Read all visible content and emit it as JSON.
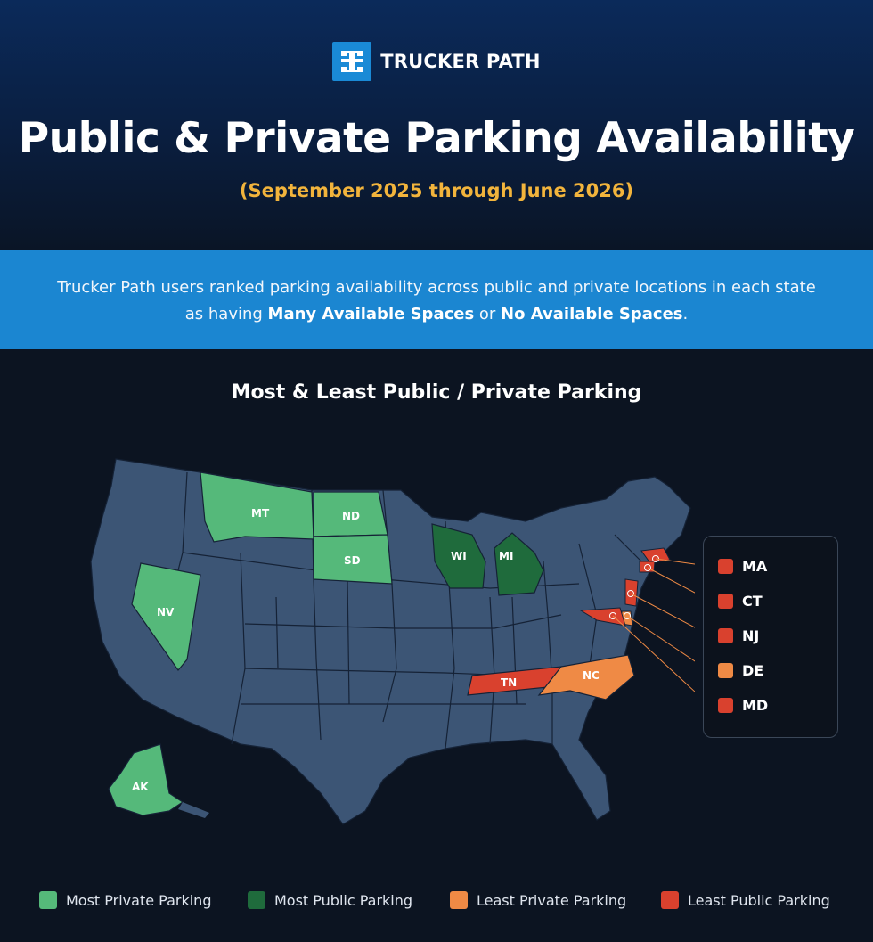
{
  "brand": {
    "name": "TRUCKER PATH",
    "accent": "#1a8ad6"
  },
  "title": "Public & Private Parking Availability",
  "subtitle": "(September 2025 through June 2026)",
  "intro": {
    "prefix": "Trucker Path users ranked parking availability across public and private locations in each state as having ",
    "bold1": "Many Available Spaces",
    "middle": " or ",
    "bold2": "No Available Spaces",
    "suffix": "."
  },
  "map_title": "Most & Least Public / Private Parking",
  "colors": {
    "most_private": "#55b97a",
    "most_public": "#1f6b3c",
    "least_private": "#ef8a45",
    "least_public": "#d9412e",
    "base_state": "#3c5575"
  },
  "state_labels": {
    "MT": "MT",
    "ND": "ND",
    "SD": "SD",
    "NV": "NV",
    "WI": "WI",
    "MI": "MI",
    "TN": "TN",
    "NC": "NC",
    "AK": "AK"
  },
  "callout_legend": [
    {
      "label": "MA",
      "color": "#d9412e"
    },
    {
      "label": "CT",
      "color": "#d9412e"
    },
    {
      "label": "NJ",
      "color": "#d9412e"
    },
    {
      "label": "DE",
      "color": "#ef8a45"
    },
    {
      "label": "MD",
      "color": "#d9412e"
    }
  ],
  "legend": [
    {
      "label": "Most Private Parking",
      "color": "#55b97a"
    },
    {
      "label": "Most Public Parking",
      "color": "#1f6b3c"
    },
    {
      "label": "Least Private Parking",
      "color": "#ef8a45"
    },
    {
      "label": "Least Public Parking",
      "color": "#d9412e"
    }
  ]
}
